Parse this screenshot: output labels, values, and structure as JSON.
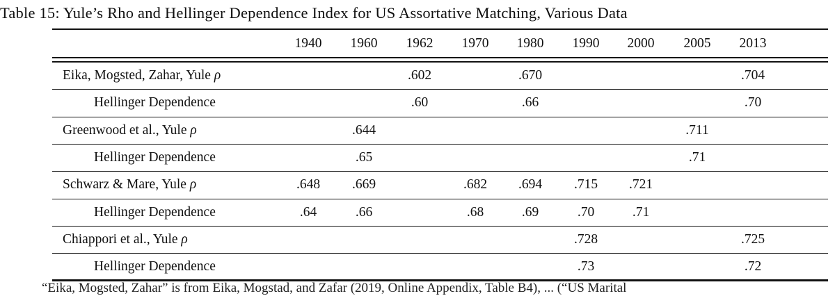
{
  "title": "Table 15: Yule’s Rho and Hellinger Dependence Index for US Assortative Matching, Various Data",
  "columns": [
    "1940",
    "1960",
    "1962",
    "1970",
    "1980",
    "1990",
    "2000",
    "2005",
    "2013"
  ],
  "rows": [
    {
      "label": "Eika, Mogsted, Zahar, Yule ρ",
      "indent": false,
      "values": [
        "",
        "",
        ".602",
        "",
        ".670",
        "",
        "",
        "",
        ".704"
      ]
    },
    {
      "label": "Hellinger Dependence",
      "indent": true,
      "values": [
        "",
        "",
        ".60",
        "",
        ".66",
        "",
        "",
        "",
        ".70"
      ]
    },
    {
      "label": "Greenwood et al., Yule ρ",
      "indent": false,
      "values": [
        "",
        ".644",
        "",
        "",
        "",
        "",
        "",
        ".711",
        ""
      ]
    },
    {
      "label": "Hellinger Dependence",
      "indent": true,
      "values": [
        "",
        ".65",
        "",
        "",
        "",
        "",
        "",
        ".71",
        ""
      ]
    },
    {
      "label": "Schwarz & Mare, Yule ρ",
      "indent": false,
      "values": [
        ".648",
        ".669",
        "",
        ".682",
        ".694",
        ".715",
        ".721",
        "",
        ""
      ]
    },
    {
      "label": "Hellinger Dependence",
      "indent": true,
      "values": [
        ".64",
        ".66",
        "",
        ".68",
        ".69",
        ".70",
        ".71",
        "",
        ""
      ]
    },
    {
      "label": "Chiappori et al., Yule ρ",
      "indent": false,
      "values": [
        "",
        "",
        "",
        "",
        "",
        ".728",
        "",
        "",
        ".725"
      ]
    },
    {
      "label": "Hellinger Dependence",
      "indent": true,
      "values": [
        "",
        "",
        "",
        "",
        "",
        ".73",
        "",
        "",
        ".72"
      ]
    }
  ],
  "footnote": "“Eika, Mogsted, Zahar” is from Eika, Mogstad, and Zafar (2019, Online Appendix, Table B4), ... (“US Marital"
}
